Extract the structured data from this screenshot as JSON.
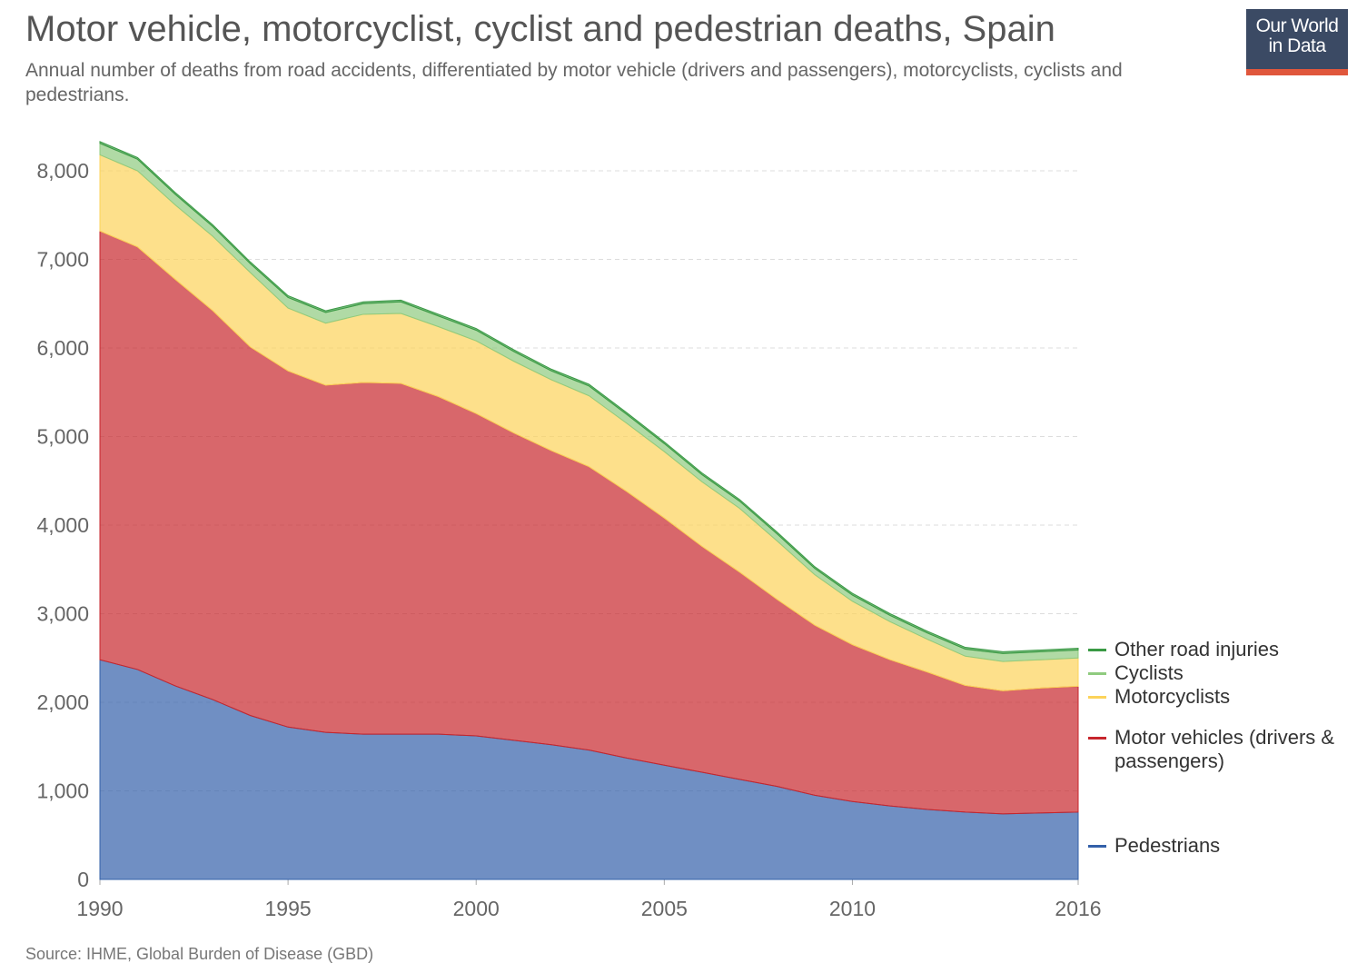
{
  "chart_data": {
    "type": "stacked_area",
    "title": "Motor vehicle, motorcyclist, cyclist and pedestrian deaths, Spain",
    "subtitle": "Annual number of deaths from road accidents, differentiated by motor vehicle (drivers and passengers), motorcyclists, cyclists and pedestrians.",
    "source": "Source: IHME, Global Burden of Disease (GBD)",
    "logo": [
      "Our World",
      "in Data"
    ],
    "x": [
      1990,
      1991,
      1992,
      1993,
      1994,
      1995,
      1996,
      1997,
      1998,
      1999,
      2000,
      2001,
      2002,
      2003,
      2004,
      2005,
      2006,
      2007,
      2008,
      2009,
      2010,
      2011,
      2012,
      2013,
      2014,
      2015,
      2016
    ],
    "series": [
      {
        "name": "Pedestrians",
        "color": "#3360a9",
        "values": [
          2480,
          2370,
          2185,
          2030,
          1850,
          1720,
          1660,
          1640,
          1640,
          1640,
          1620,
          1570,
          1520,
          1460,
          1370,
          1290,
          1210,
          1130,
          1050,
          950,
          880,
          830,
          790,
          760,
          740,
          750,
          760
        ]
      },
      {
        "name": "Motor vehicles (drivers & passengers)",
        "color": "#c7262c",
        "values": [
          4840,
          4770,
          4590,
          4390,
          4160,
          4020,
          3920,
          3970,
          3960,
          3810,
          3640,
          3470,
          3320,
          3200,
          3010,
          2790,
          2550,
          2340,
          2110,
          1920,
          1770,
          1650,
          1550,
          1430,
          1390,
          1410,
          1420
        ]
      },
      {
        "name": "Motorcyclists",
        "color": "#fcd35a",
        "values": [
          860,
          860,
          840,
          840,
          840,
          710,
          700,
          770,
          790,
          790,
          820,
          810,
          800,
          800,
          770,
          750,
          730,
          720,
          660,
          570,
          490,
          430,
          370,
          330,
          330,
          320,
          320
        ]
      },
      {
        "name": "Cyclists",
        "color": "#8fcb7f",
        "values": [
          130,
          130,
          120,
          110,
          100,
          120,
          120,
          120,
          130,
          120,
          120,
          110,
          100,
          110,
          100,
          90,
          80,
          80,
          80,
          70,
          70,
          70,
          70,
          80,
          90,
          90,
          90
        ]
      },
      {
        "name": "Other road injuries",
        "color": "#3a9a44",
        "values": [
          20,
          20,
          20,
          20,
          20,
          20,
          20,
          20,
          20,
          20,
          20,
          20,
          20,
          20,
          20,
          20,
          20,
          20,
          20,
          20,
          20,
          20,
          20,
          20,
          20,
          20,
          20
        ]
      }
    ],
    "xlim": [
      1990,
      2016
    ],
    "xticks": [
      1990,
      1995,
      2000,
      2005,
      2010,
      2016
    ],
    "ylim": [
      0,
      8000
    ],
    "yticks": [
      0,
      {
        "value": 1000,
        "label": "1,000"
      },
      {
        "value": 2000,
        "label": "2,000"
      },
      {
        "value": 3000,
        "label": "3,000"
      },
      {
        "value": 4000,
        "label": "4,000"
      },
      {
        "value": 5000,
        "label": "5,000"
      },
      {
        "value": 6000,
        "label": "6,000"
      },
      {
        "value": 7000,
        "label": "7,000"
      },
      {
        "value": 8000,
        "label": "8,000"
      }
    ],
    "grid": true
  }
}
